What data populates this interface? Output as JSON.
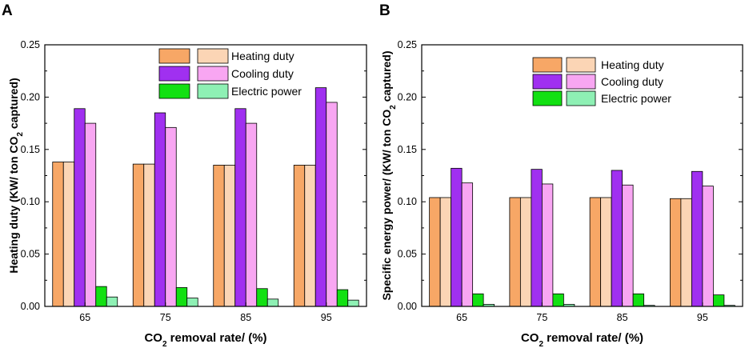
{
  "figure": {
    "background": "#ffffff"
  },
  "panel_labels": [
    "A",
    "B"
  ],
  "chart_data": [
    {
      "type": "bar",
      "panel": "A",
      "xlabel_parts": [
        "CO",
        "2",
        " removal rate/ (%)"
      ],
      "ylabel_parts": [
        "Heating duty (KW/ ton CO",
        "2",
        " captured)"
      ],
      "categories": [
        "65",
        "75",
        "85",
        "95"
      ],
      "ylim": [
        0,
        0.25
      ],
      "yticks": [
        "0.00",
        "0.05",
        "0.10",
        "0.15",
        "0.20",
        "0.25"
      ],
      "legend_position": "top-right",
      "legend_labels": [
        "Heating duty",
        "Cooling duty",
        "Electric power"
      ],
      "series": [
        {
          "name": "Heating duty",
          "values": [
            0.138,
            0.136,
            0.135,
            0.135
          ],
          "color": "#f7a766"
        },
        {
          "name": "Heating duty",
          "values": [
            0.138,
            0.136,
            0.135,
            0.135
          ],
          "color": "#fbd5b5"
        },
        {
          "name": "Cooling duty",
          "values": [
            0.189,
            0.185,
            0.189,
            0.209
          ],
          "color": "#a030f0"
        },
        {
          "name": "Cooling duty",
          "values": [
            0.175,
            0.171,
            0.175,
            0.195
          ],
          "color": "#f8a6f2"
        },
        {
          "name": "Electric power",
          "values": [
            0.019,
            0.018,
            0.017,
            0.016
          ],
          "color": "#12e012"
        },
        {
          "name": "Electric power",
          "values": [
            0.009,
            0.008,
            0.007,
            0.006
          ],
          "color": "#8ef0b4"
        }
      ]
    },
    {
      "type": "bar",
      "panel": "B",
      "xlabel_parts": [
        "CO",
        "2",
        " removal rate/ (%)"
      ],
      "ylabel_parts": [
        "Specific energy power/ (KW/ ton CO",
        "2",
        " captured)"
      ],
      "categories": [
        "65",
        "75",
        "85",
        "95"
      ],
      "ylim": [
        0,
        0.25
      ],
      "yticks": [
        "0.00",
        "0.05",
        "0.10",
        "0.15",
        "0.20",
        "0.25"
      ],
      "legend_position": "top-right",
      "legend_labels": [
        "Heating duty",
        "Cooling duty",
        "Electric power"
      ],
      "series": [
        {
          "name": "Heating duty",
          "values": [
            0.104,
            0.104,
            0.104,
            0.103
          ],
          "color": "#f7a766"
        },
        {
          "name": "Heating duty",
          "values": [
            0.104,
            0.104,
            0.104,
            0.103
          ],
          "color": "#fbd5b5"
        },
        {
          "name": "Cooling duty",
          "values": [
            0.132,
            0.131,
            0.13,
            0.129
          ],
          "color": "#a030f0"
        },
        {
          "name": "Cooling duty",
          "values": [
            0.118,
            0.117,
            0.116,
            0.115
          ],
          "color": "#f8a6f2"
        },
        {
          "name": "Electric power",
          "values": [
            0.012,
            0.012,
            0.012,
            0.011
          ],
          "color": "#12e012"
        },
        {
          "name": "Electric power",
          "values": [
            0.002,
            0.002,
            0.001,
            0.001
          ],
          "color": "#8ef0b4"
        }
      ]
    }
  ]
}
